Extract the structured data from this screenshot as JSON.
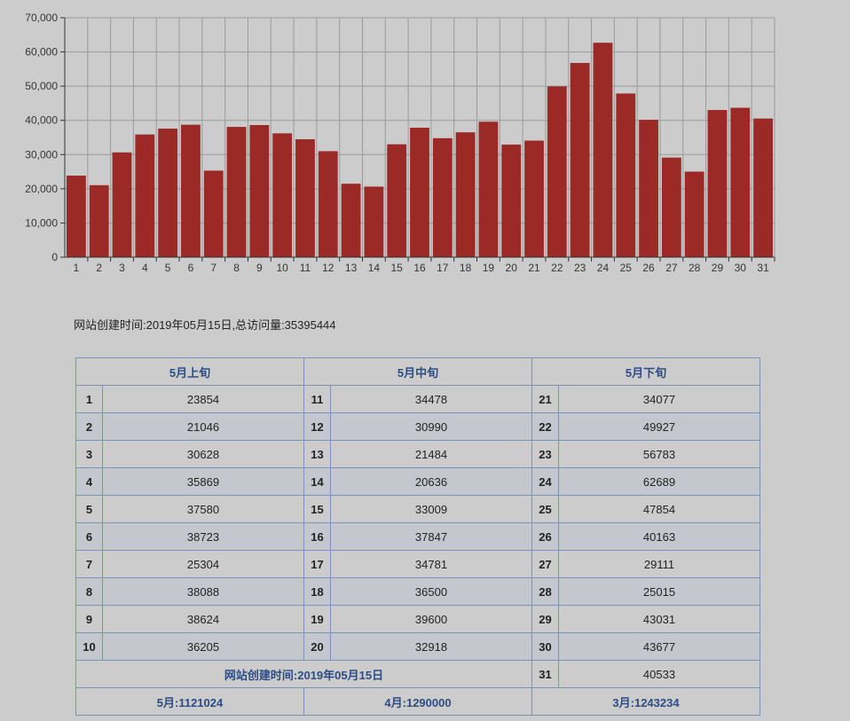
{
  "chart_data": {
    "type": "bar",
    "categories": [
      "1",
      "2",
      "3",
      "4",
      "5",
      "6",
      "7",
      "8",
      "9",
      "10",
      "11",
      "12",
      "13",
      "14",
      "15",
      "16",
      "17",
      "18",
      "19",
      "20",
      "21",
      "22",
      "23",
      "24",
      "25",
      "26",
      "27",
      "28",
      "29",
      "30",
      "31"
    ],
    "values": [
      23854,
      21046,
      30628,
      35869,
      37580,
      38723,
      25304,
      38088,
      38624,
      36205,
      34478,
      30990,
      21484,
      20636,
      33009,
      37847,
      34781,
      36500,
      39600,
      32918,
      34077,
      49927,
      56783,
      62689,
      47854,
      40163,
      29111,
      25015,
      43031,
      43677,
      40533
    ],
    "yticks": [
      "0",
      "10,000",
      "20,000",
      "30,000",
      "40,000",
      "50,000",
      "60,000",
      "70,000"
    ],
    "ylim": [
      0,
      70000
    ],
    "grid": true,
    "bar_color": "#9b2a27"
  },
  "summary": "网站创建时间:2019年05月15日,总访问量:35395444",
  "table": {
    "headers": [
      "5月上旬",
      "5月中旬",
      "5月下旬"
    ],
    "rows": [
      [
        "1",
        "23854",
        "11",
        "34478",
        "21",
        "34077"
      ],
      [
        "2",
        "21046",
        "12",
        "30990",
        "22",
        "49927"
      ],
      [
        "3",
        "30628",
        "13",
        "21484",
        "23",
        "56783"
      ],
      [
        "4",
        "35869",
        "14",
        "20636",
        "24",
        "62689"
      ],
      [
        "5",
        "37580",
        "15",
        "33009",
        "25",
        "47854"
      ],
      [
        "6",
        "38723",
        "16",
        "37847",
        "26",
        "40163"
      ],
      [
        "7",
        "25304",
        "17",
        "34781",
        "27",
        "29111"
      ],
      [
        "8",
        "38088",
        "18",
        "36500",
        "28",
        "25015"
      ],
      [
        "9",
        "38624",
        "19",
        "39600",
        "29",
        "43031"
      ],
      [
        "10",
        "36205",
        "20",
        "32918",
        "30",
        "43677"
      ]
    ],
    "extra_row": {
      "note": "网站创建时间:2019年05月15日",
      "day": "31",
      "value": "40533"
    },
    "footer": [
      "5月:1121024",
      "4月:1290000",
      "3月:1243234"
    ],
    "colors": {
      "border": "#7c93b8",
      "header_text": "#2c4c86",
      "stripe": "#c4c7cd"
    }
  }
}
